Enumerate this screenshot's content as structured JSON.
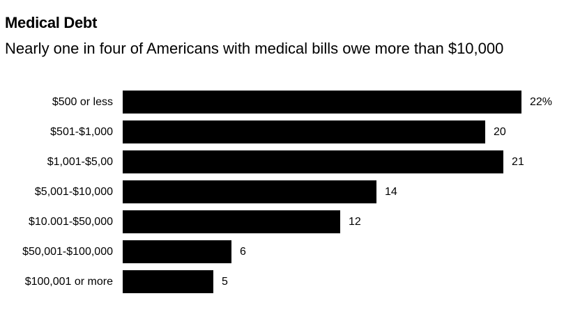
{
  "chart_data": {
    "type": "bar",
    "orientation": "horizontal",
    "title": "Medical Debt",
    "subtitle": "Nearly one in four of Americans with medical bills owe more than $10,000",
    "xlabel": "",
    "ylabel": "",
    "categories": [
      "$500 or less",
      "$501-$1,000",
      "$1,001-$5,00",
      "$5,001-$10,000",
      "$10.001-$50,000",
      "$50,001-$100,000",
      "$100,001 or more"
    ],
    "values": [
      22,
      20,
      21,
      14,
      12,
      6,
      5
    ],
    "value_labels": [
      "22%",
      "20",
      "21",
      "14",
      "12",
      "6",
      "5"
    ],
    "xlim": [
      0,
      22
    ],
    "grid": false,
    "legend": "none",
    "bar_color": "#000000"
  }
}
